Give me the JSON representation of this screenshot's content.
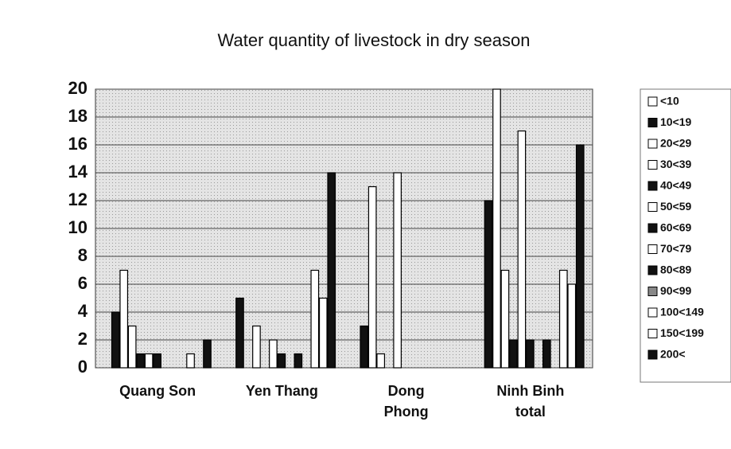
{
  "chart_data": {
    "type": "bar",
    "title": "Water quantity of livestock in dry season",
    "categories": [
      "Quang Son",
      "Yen Thang",
      "Dong Phong",
      "Ninh Binh total"
    ],
    "series": [
      {
        "name": "<10",
        "color": "#ffffff",
        "values": [
          0,
          0,
          0,
          0
        ]
      },
      {
        "name": "10<19",
        "color": "#111111",
        "values": [
          4,
          5,
          3,
          12
        ]
      },
      {
        "name": "20<29",
        "color": "#ffffff",
        "values": [
          7,
          0,
          13,
          20
        ]
      },
      {
        "name": "30<39",
        "color": "#ffffff",
        "values": [
          3,
          3,
          1,
          7
        ]
      },
      {
        "name": "40<49",
        "color": "#111111",
        "values": [
          1,
          0,
          0,
          2
        ]
      },
      {
        "name": "50<59",
        "color": "#ffffff",
        "values": [
          1,
          2,
          14,
          17
        ]
      },
      {
        "name": "60<69",
        "color": "#111111",
        "values": [
          1,
          1,
          0,
          2
        ]
      },
      {
        "name": "70<79",
        "color": "#ffffff",
        "values": [
          0,
          0,
          0,
          0
        ]
      },
      {
        "name": "80<89",
        "color": "#111111",
        "values": [
          0,
          1,
          0,
          2
        ]
      },
      {
        "name": "90<99",
        "color": "#888888",
        "values": [
          0,
          0,
          0,
          0
        ]
      },
      {
        "name": "100<149",
        "color": "#ffffff",
        "values": [
          1,
          7,
          0,
          7
        ]
      },
      {
        "name": "150<199",
        "color": "#ffffff",
        "values": [
          0,
          5,
          0,
          6
        ]
      },
      {
        "name": "200<",
        "color": "#111111",
        "values": [
          2,
          14,
          0,
          16
        ]
      }
    ],
    "ylim": [
      0,
      20
    ],
    "yticks": [
      0,
      2,
      4,
      6,
      8,
      10,
      12,
      14,
      16,
      18,
      20
    ],
    "grid": true,
    "legend": "right"
  }
}
